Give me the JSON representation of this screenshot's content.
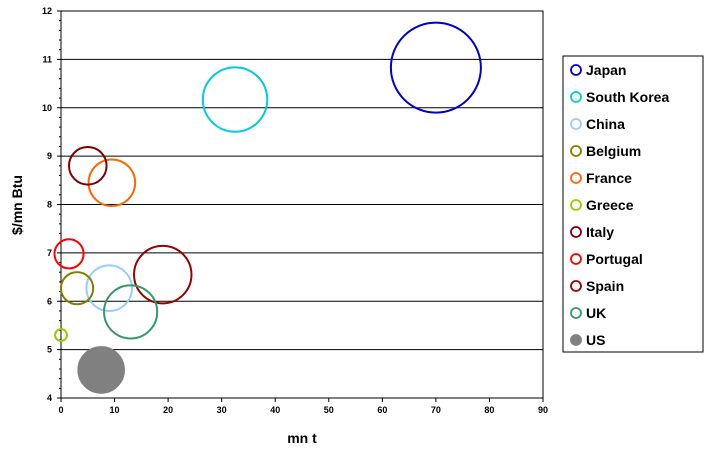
{
  "chart_data": {
    "type": "scatter",
    "subtype": "bubble",
    "title": "",
    "xlabel": "mn t",
    "ylabel": "$/mn Btu",
    "xlim": [
      0,
      90
    ],
    "ylim": [
      4,
      12
    ],
    "xticks": [
      0,
      10,
      20,
      30,
      40,
      50,
      60,
      70,
      80,
      90
    ],
    "yticks": [
      4,
      5,
      6,
      7,
      8,
      9,
      10,
      11,
      12
    ],
    "grid": {
      "horizontal": true,
      "vertical": false
    },
    "legend_position": "right",
    "series": [
      {
        "name": "Japan",
        "x": 70,
        "y": 10.83,
        "size": 8.6,
        "color": "#0000CC",
        "filled": false
      },
      {
        "name": "South Korea",
        "x": 32.5,
        "y": 10.17,
        "size": 4.4,
        "color": "#00CCDD",
        "filled": false
      },
      {
        "name": "China",
        "x": 9,
        "y": 6.27,
        "size": 2.2,
        "color": "#99CCFF",
        "filled": false
      },
      {
        "name": "Belgium",
        "x": 3,
        "y": 6.27,
        "size": 1.1,
        "color": "#808000",
        "filled": false
      },
      {
        "name": "France",
        "x": 9.5,
        "y": 8.45,
        "size": 2.3,
        "color": "#FF6600",
        "filled": false
      },
      {
        "name": "Greece",
        "x": 0,
        "y": 5.3,
        "size": 0.15,
        "color": "#99CC00",
        "filled": false
      },
      {
        "name": "Italy",
        "x": 5,
        "y": 8.8,
        "size": 1.5,
        "color": "#800000",
        "filled": false
      },
      {
        "name": "Portugal",
        "x": 1.5,
        "y": 6.98,
        "size": 0.9,
        "color": "#FF0000",
        "filled": false
      },
      {
        "name": "Spain",
        "x": 19,
        "y": 6.55,
        "size": 3.5,
        "color": "#990000",
        "filled": false
      },
      {
        "name": "UK",
        "x": 13,
        "y": 5.78,
        "size": 3.0,
        "color": "#339966",
        "filled": false
      },
      {
        "name": "US",
        "x": 7.5,
        "y": 4.58,
        "size": 2.3,
        "color": "#808080",
        "filled": true
      }
    ]
  }
}
